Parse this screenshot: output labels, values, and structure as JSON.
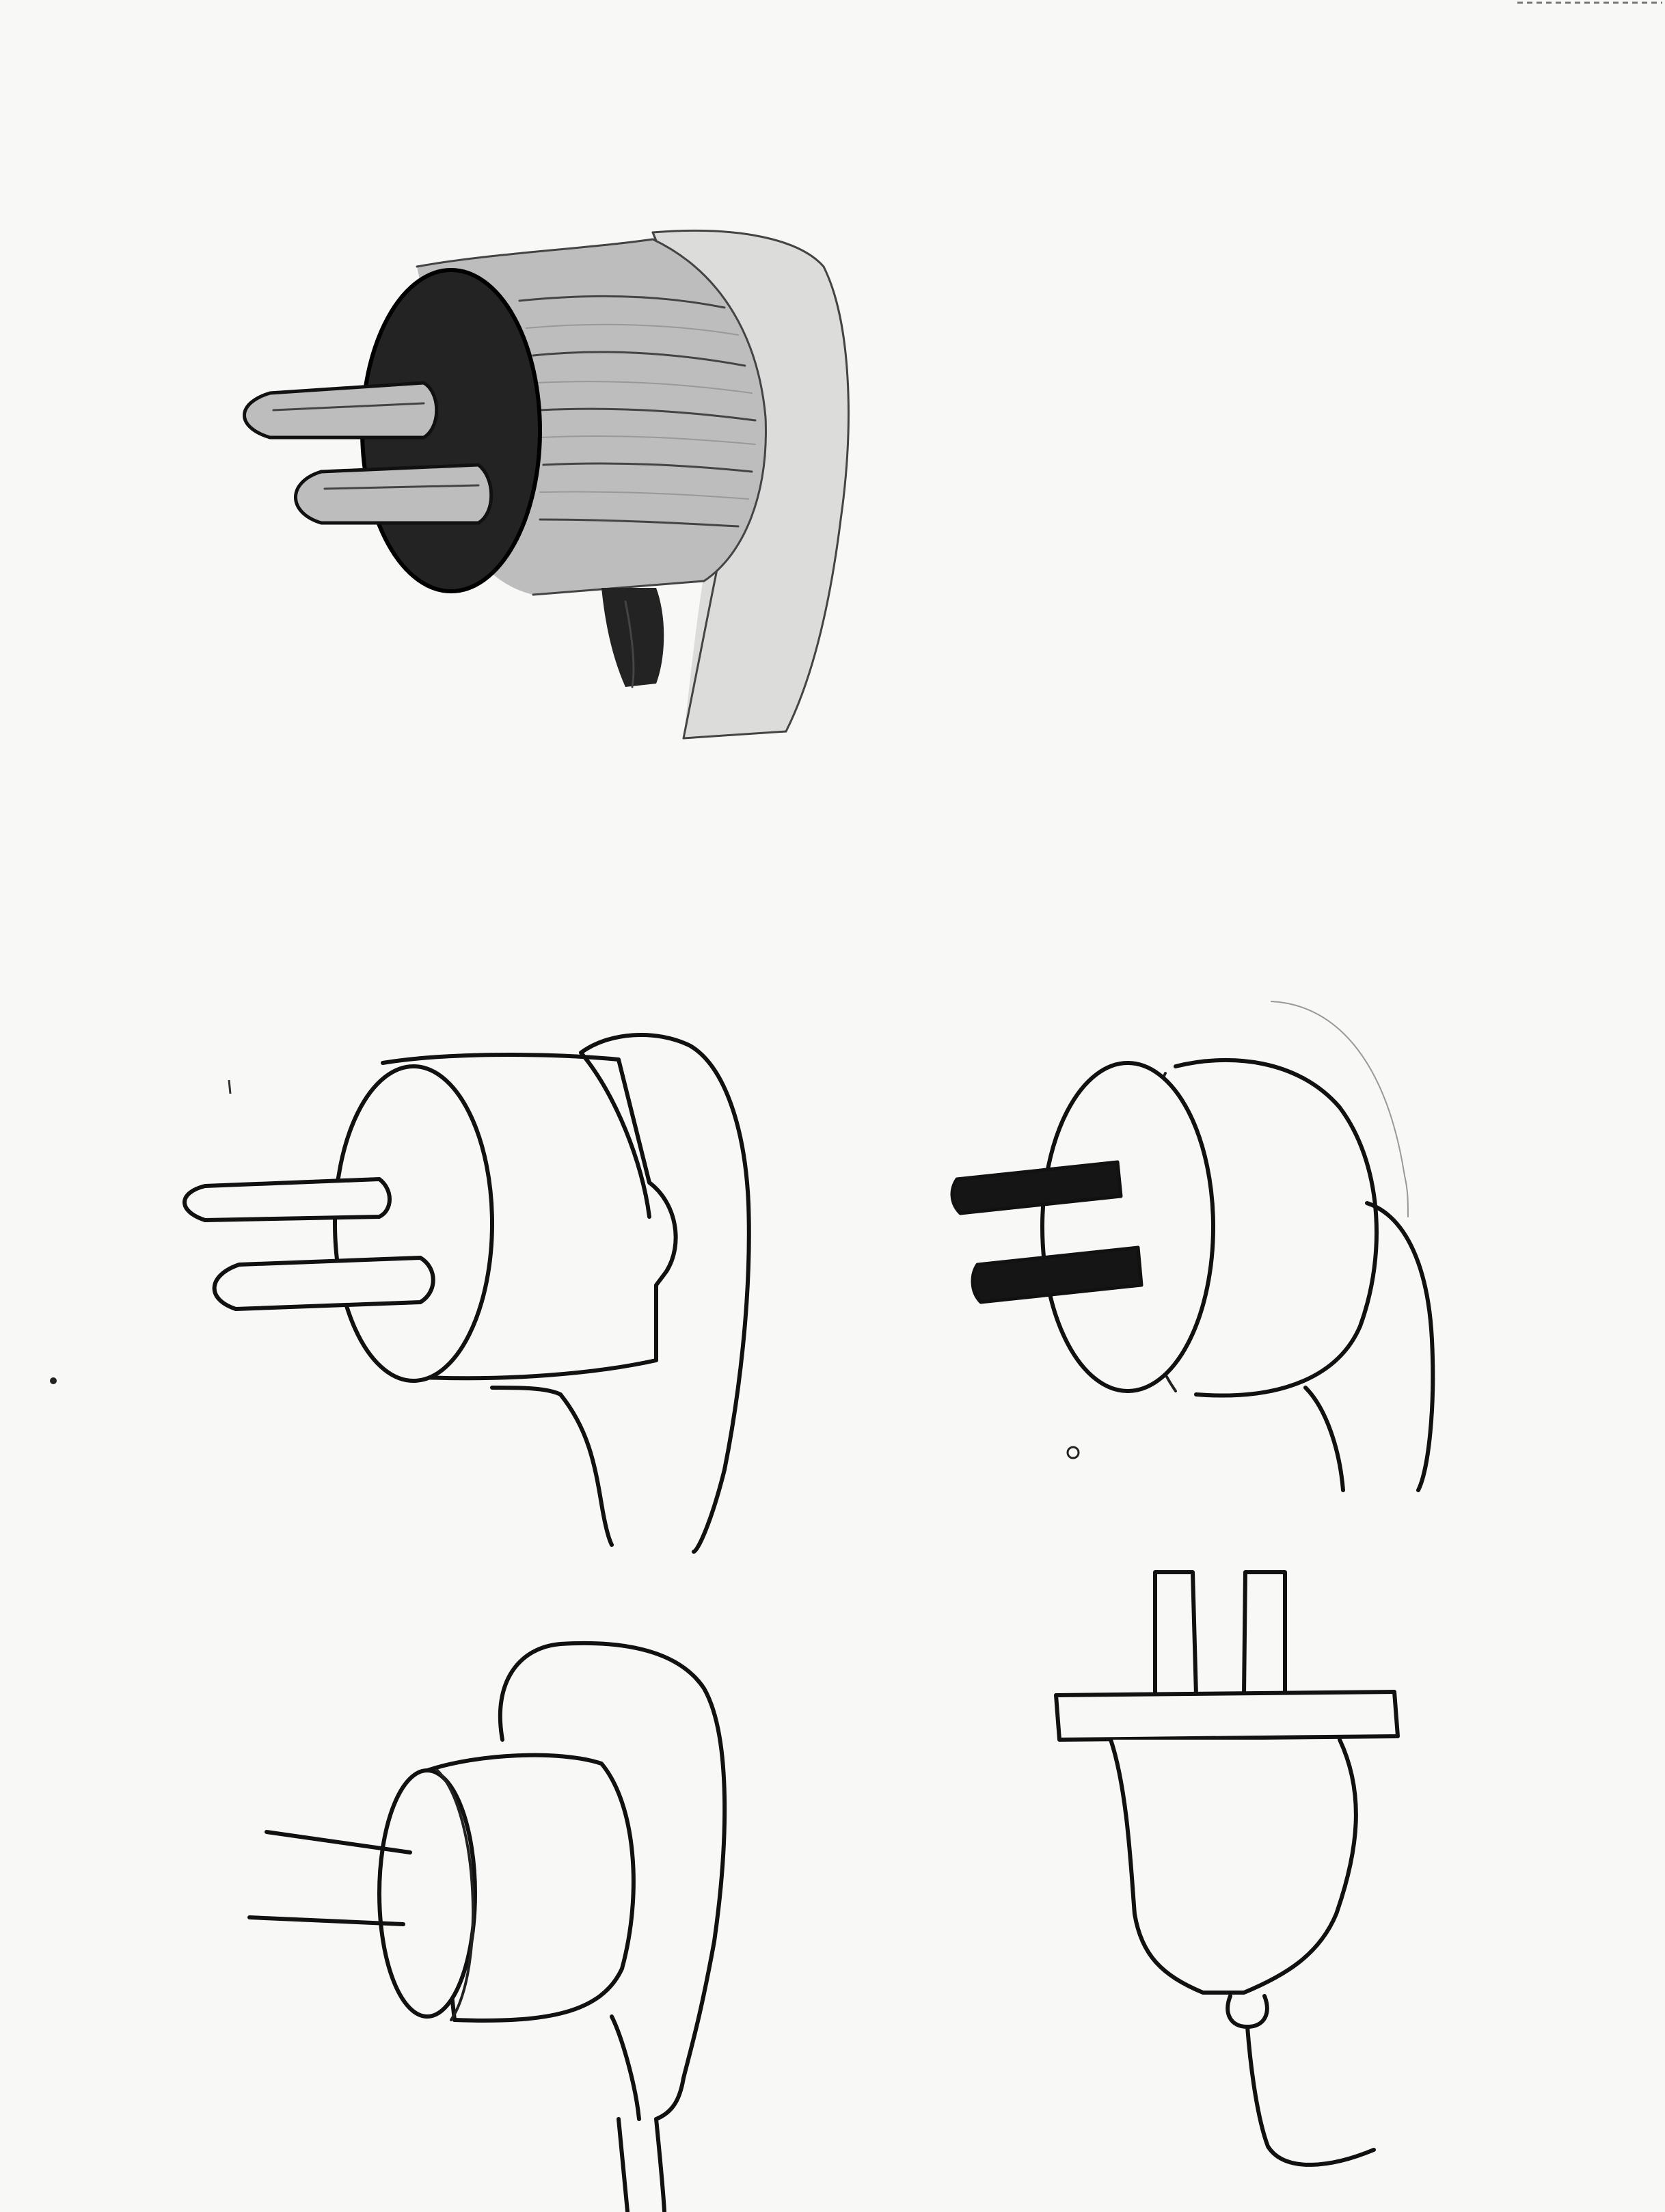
{
  "sheet": {
    "paper_color": "#f8f8f6",
    "ink_color": "#111111",
    "pencil_color": "#444444"
  },
  "sketches": [
    {
      "id": "shaded-plug-top",
      "medium": "pencil-shaded"
    },
    {
      "id": "plug-middle-left",
      "medium": "ink-outline"
    },
    {
      "id": "plug-middle-right",
      "medium": "ink-with-solid-prongs"
    },
    {
      "id": "plug-bottom-left",
      "medium": "ink-outline"
    },
    {
      "id": "plug-bottom-right",
      "medium": "ink-outline-front-view"
    }
  ]
}
